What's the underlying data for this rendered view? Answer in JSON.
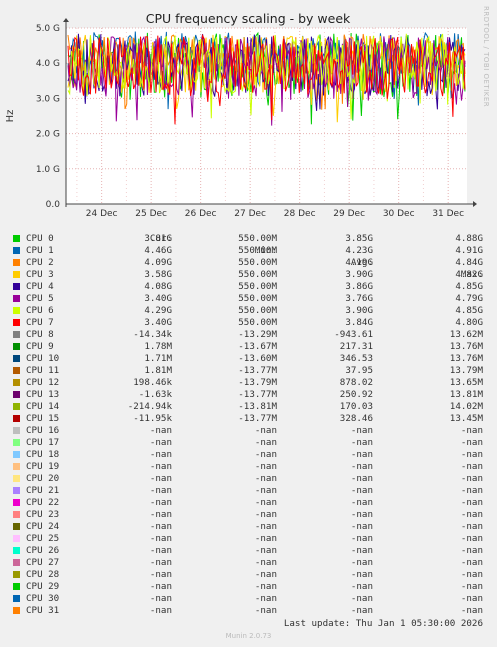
{
  "side_text": "RRDTOOL / TOBI OETIKER",
  "headers": {
    "cur": "Cur:",
    "min": "Min:",
    "avg": "Avg:",
    "max": "Max:"
  },
  "last_update": "Last update: Thu Jan  1 05:30:00 2026",
  "footer": "Munin 2.0.73",
  "chart_data": {
    "type": "line",
    "title": "CPU frequency scaling - by week",
    "ylabel": "Hz",
    "ylim": [
      0,
      5000000000
    ],
    "yticks": [
      {
        "value": 0,
        "label": "0.0"
      },
      {
        "value": 1000000000,
        "label": "1.0 G"
      },
      {
        "value": 2000000000,
        "label": "2.0 G"
      },
      {
        "value": 3000000000,
        "label": "3.0 G"
      },
      {
        "value": 4000000000,
        "label": "4.0 G"
      },
      {
        "value": 5000000000,
        "label": "5.0 G"
      }
    ],
    "xticks": [
      "24 Dec",
      "25 Dec",
      "26 Dec",
      "27 Dec",
      "28 Dec",
      "29 Dec",
      "30 Dec",
      "31 Dec"
    ],
    "grid": true,
    "series": [
      {
        "name": "CPU 0",
        "color": "#00cc00",
        "cur": "3.81G",
        "min": "550.00M",
        "avg": "3.85G",
        "max": "4.88G"
      },
      {
        "name": "CPU 1",
        "color": "#0066b3",
        "cur": "4.46G",
        "min": "550.00M",
        "avg": "4.23G",
        "max": "4.91G"
      },
      {
        "name": "CPU 2",
        "color": "#ff8000",
        "cur": "4.09G",
        "min": "550.00M",
        "avg": "4.19G",
        "max": "4.84G"
      },
      {
        "name": "CPU 3",
        "color": "#ffcc00",
        "cur": "3.58G",
        "min": "550.00M",
        "avg": "3.90G",
        "max": "4.82G"
      },
      {
        "name": "CPU 4",
        "color": "#330099",
        "cur": "4.08G",
        "min": "550.00M",
        "avg": "3.86G",
        "max": "4.85G"
      },
      {
        "name": "CPU 5",
        "color": "#990099",
        "cur": "3.40G",
        "min": "550.00M",
        "avg": "3.76G",
        "max": "4.79G"
      },
      {
        "name": "CPU 6",
        "color": "#ccff00",
        "cur": "4.29G",
        "min": "550.00M",
        "avg": "3.90G",
        "max": "4.85G"
      },
      {
        "name": "CPU 7",
        "color": "#ff0000",
        "cur": "3.40G",
        "min": "550.00M",
        "avg": "3.84G",
        "max": "4.80G"
      },
      {
        "name": "CPU 8",
        "color": "#808080",
        "cur": "-14.34k",
        "min": "-13.29M",
        "avg": "-943.61",
        "max": "13.62M"
      },
      {
        "name": "CPU 9",
        "color": "#008f00",
        "cur": "1.78M",
        "min": "-13.67M",
        "avg": "217.31",
        "max": "13.76M"
      },
      {
        "name": "CPU 10",
        "color": "#00487d",
        "cur": "1.71M",
        "min": "-13.60M",
        "avg": "346.53",
        "max": "13.76M"
      },
      {
        "name": "CPU 11",
        "color": "#b35a00",
        "cur": "1.81M",
        "min": "-13.77M",
        "avg": "37.95",
        "max": "13.79M"
      },
      {
        "name": "CPU 12",
        "color": "#b38f00",
        "cur": "198.46k",
        "min": "-13.79M",
        "avg": "878.02",
        "max": "13.65M"
      },
      {
        "name": "CPU 13",
        "color": "#6b006b",
        "cur": "-1.63k",
        "min": "-13.77M",
        "avg": "250.92",
        "max": "13.81M"
      },
      {
        "name": "CPU 14",
        "color": "#8fb300",
        "cur": "-214.94k",
        "min": "-13.81M",
        "avg": "170.03",
        "max": "14.02M"
      },
      {
        "name": "CPU 15",
        "color": "#b30000",
        "cur": "-11.95k",
        "min": "-13.77M",
        "avg": "328.46",
        "max": "13.45M"
      },
      {
        "name": "CPU 16",
        "color": "#bebebe",
        "cur": "-nan",
        "min": "-nan",
        "avg": "-nan",
        "max": "-nan"
      },
      {
        "name": "CPU 17",
        "color": "#80ff80",
        "cur": "-nan",
        "min": "-nan",
        "avg": "-nan",
        "max": "-nan"
      },
      {
        "name": "CPU 18",
        "color": "#80c9ff",
        "cur": "-nan",
        "min": "-nan",
        "avg": "-nan",
        "max": "-nan"
      },
      {
        "name": "CPU 19",
        "color": "#ffc080",
        "cur": "-nan",
        "min": "-nan",
        "avg": "-nan",
        "max": "-nan"
      },
      {
        "name": "CPU 20",
        "color": "#ffe680",
        "cur": "-nan",
        "min": "-nan",
        "avg": "-nan",
        "max": "-nan"
      },
      {
        "name": "CPU 21",
        "color": "#aa80ff",
        "cur": "-nan",
        "min": "-nan",
        "avg": "-nan",
        "max": "-nan"
      },
      {
        "name": "CPU 22",
        "color": "#ee00cc",
        "cur": "-nan",
        "min": "-nan",
        "avg": "-nan",
        "max": "-nan"
      },
      {
        "name": "CPU 23",
        "color": "#ff8080",
        "cur": "-nan",
        "min": "-nan",
        "avg": "-nan",
        "max": "-nan"
      },
      {
        "name": "CPU 24",
        "color": "#666600",
        "cur": "-nan",
        "min": "-nan",
        "avg": "-nan",
        "max": "-nan"
      },
      {
        "name": "CPU 25",
        "color": "#ffbfff",
        "cur": "-nan",
        "min": "-nan",
        "avg": "-nan",
        "max": "-nan"
      },
      {
        "name": "CPU 26",
        "color": "#00ffcc",
        "cur": "-nan",
        "min": "-nan",
        "avg": "-nan",
        "max": "-nan"
      },
      {
        "name": "CPU 27",
        "color": "#cc6699",
        "cur": "-nan",
        "min": "-nan",
        "avg": "-nan",
        "max": "-nan"
      },
      {
        "name": "CPU 28",
        "color": "#999900",
        "cur": "-nan",
        "min": "-nan",
        "avg": "-nan",
        "max": "-nan"
      },
      {
        "name": "CPU 29",
        "color": "#00cc00",
        "cur": "-nan",
        "min": "-nan",
        "avg": "-nan",
        "max": "-nan"
      },
      {
        "name": "CPU 30",
        "color": "#0066b3",
        "cur": "-nan",
        "min": "-nan",
        "avg": "-nan",
        "max": "-nan"
      },
      {
        "name": "CPU 31",
        "color": "#ff8000",
        "cur": "-nan",
        "min": "-nan",
        "avg": "-nan",
        "max": "-nan"
      }
    ]
  }
}
